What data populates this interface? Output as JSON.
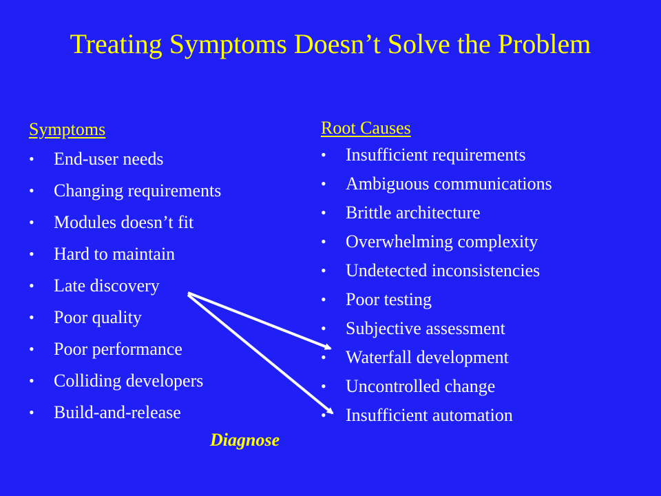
{
  "slide": {
    "title": "Treating Symptoms Doesn’t Solve the Problem",
    "diagnose_label": "Diagnose",
    "colors": {
      "background": "#1f1ff6",
      "title": "#ffff00",
      "heading": "#ffff00",
      "body_text": "#ffffff",
      "arrow": "#ffffff"
    }
  },
  "symptoms": {
    "heading": "Symptoms",
    "bullet": "•",
    "items": [
      "End-user needs",
      "Changing requirements",
      "Modules doesn’t fit",
      "Hard to maintain",
      "Late discovery",
      "Poor quality",
      "Poor performance",
      "Colliding developers",
      "Build-and-release"
    ]
  },
  "root_causes": {
    "heading": "Root Causes",
    "bullet": "•",
    "items": [
      "Insufficient requirements",
      "Ambiguous communications",
      "Brittle architecture",
      "Overwhelming complexity",
      "Undetected inconsistencies",
      "Poor testing",
      "Subjective assessment",
      "Waterfall development",
      "Uncontrolled change",
      "Insufficient automation"
    ]
  },
  "arrows": [
    {
      "from": "Late discovery",
      "to": "Waterfall development"
    },
    {
      "from": "Late discovery",
      "to": "Insufficient automation"
    }
  ]
}
